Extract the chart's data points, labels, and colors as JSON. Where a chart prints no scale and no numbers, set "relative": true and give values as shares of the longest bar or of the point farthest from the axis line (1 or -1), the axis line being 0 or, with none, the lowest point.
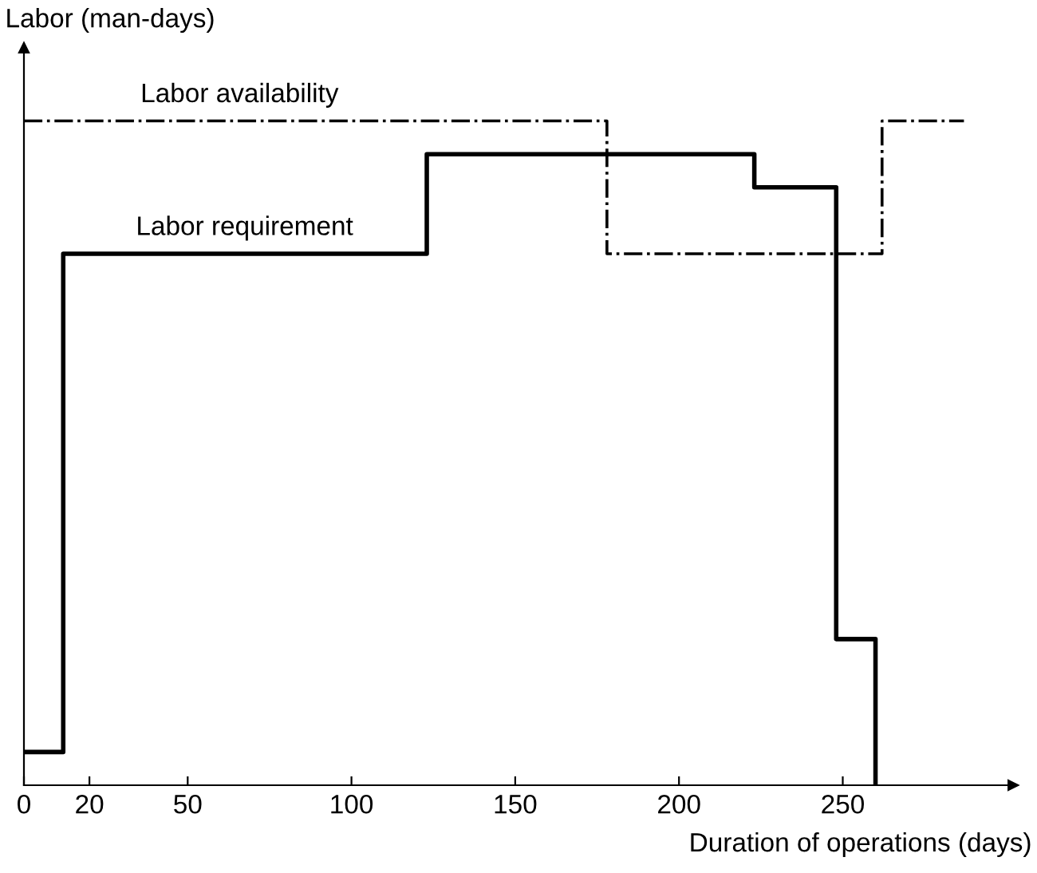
{
  "chart_data": {
    "type": "step",
    "relative": true,
    "xlabel": "Duration of operations (days)",
    "ylabel": "Labor (man-days)",
    "xlim": [
      0,
      302
    ],
    "xticks": [
      0,
      20,
      50,
      100,
      150,
      200,
      250
    ],
    "grid": false,
    "legend": false,
    "series": [
      {
        "name": "Labor availability",
        "color": "#000000",
        "line_style": "dashdot",
        "x": [
          0,
          178,
          262,
          287
        ],
        "values": [
          1,
          0.8,
          1,
          1
        ]
      },
      {
        "name": "Labor requirement",
        "color": "#000000",
        "line_style": "solid",
        "x": [
          0,
          12,
          123,
          223,
          248,
          260
        ],
        "values": [
          0.05,
          0.8,
          0.95,
          0.9,
          0.22,
          0
        ]
      }
    ]
  }
}
